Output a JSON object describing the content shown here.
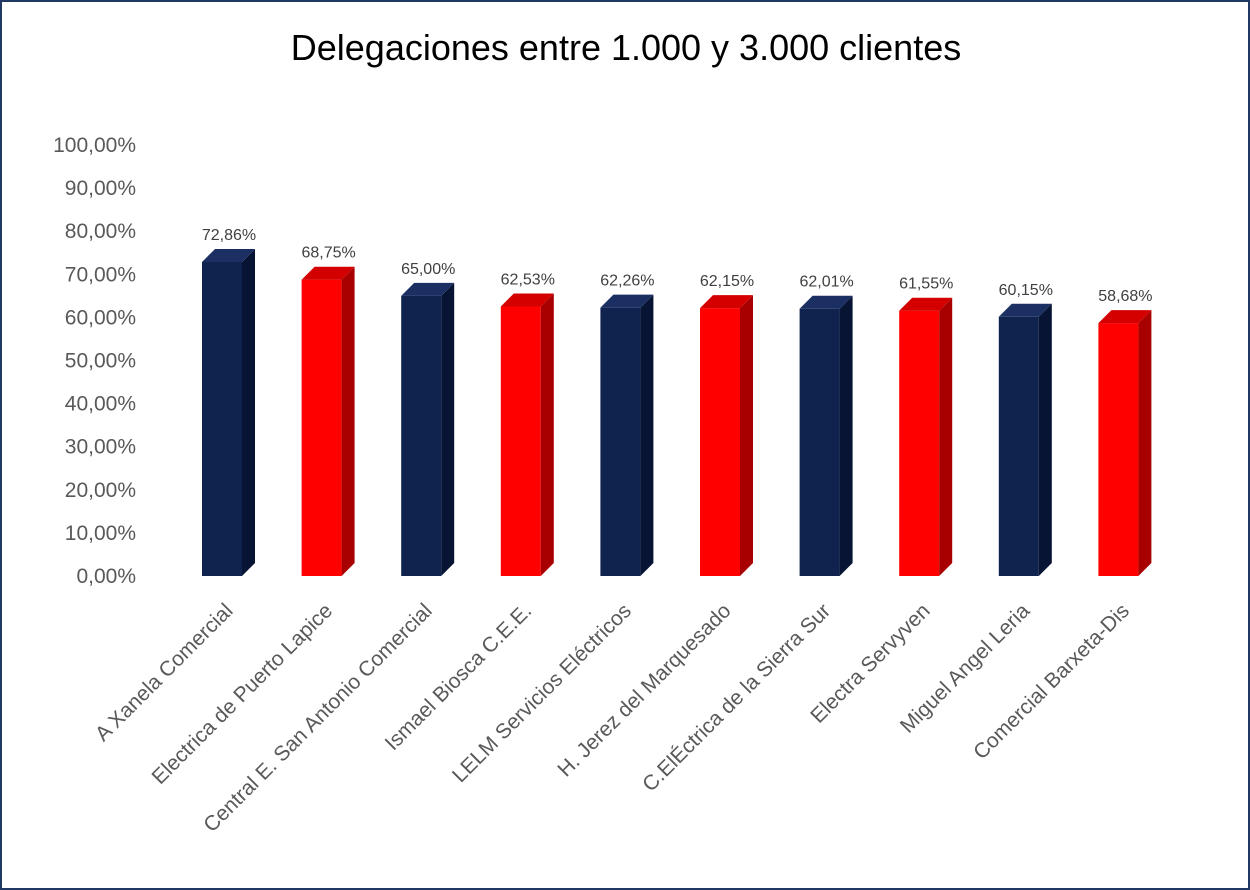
{
  "chart_data": {
    "type": "bar",
    "title": "Delegaciones entre 1.000 y 3.000 clientes",
    "xlabel": "",
    "ylabel": "",
    "ylim": [
      0,
      100
    ],
    "y_tick_labels": [
      "0,00%",
      "10,00%",
      "20,00%",
      "30,00%",
      "40,00%",
      "50,00%",
      "60,00%",
      "70,00%",
      "80,00%",
      "90,00%",
      "100,00%"
    ],
    "grid": false,
    "legend": "none",
    "categories": [
      "A Xanela Comercial",
      "Electrica de Puerto Lapice",
      "Central E. San Antonio Comercial",
      "Ismael Biosca C.E.E.",
      "LELM Servicios Eléctricos",
      "H. Jerez del Marquesado",
      "C.ElÉctrica de la Sierra Sur",
      "Electra Servyven",
      "Miguel Angel Leria",
      "Comercial Barxeta-Dis"
    ],
    "values": [
      72.86,
      68.75,
      65.0,
      62.53,
      62.26,
      62.15,
      62.01,
      61.55,
      60.15,
      58.68
    ],
    "data_labels": [
      "72,86%",
      "68,75%",
      "65,00%",
      "62,53%",
      "62,26%",
      "62,15%",
      "62,01%",
      "61,55%",
      "60,15%",
      "58,68%"
    ],
    "bar_colors": [
      "navy",
      "red",
      "navy",
      "red",
      "navy",
      "red",
      "navy",
      "red",
      "navy",
      "red"
    ]
  },
  "colors": {
    "navy_front": "#10234f",
    "navy_side": "#071433",
    "navy_top": "#1b2f63",
    "red_front": "#ff0000",
    "red_side": "#a80000",
    "red_top": "#d40000",
    "frame": "#1f3864"
  }
}
